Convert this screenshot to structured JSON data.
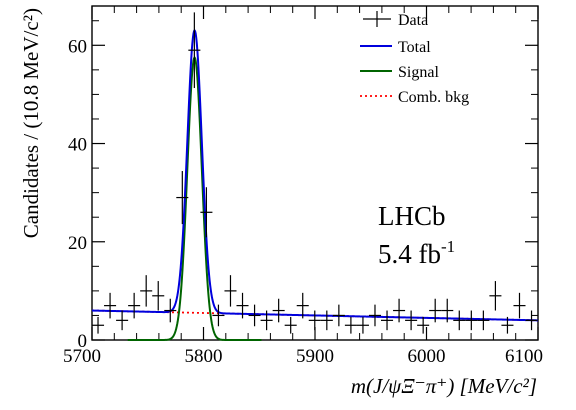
{
  "chart_data": {
    "type": "scatter",
    "xlabel": "m(J/ψΞ⁻π⁺) [MeV/c²]",
    "ylabel": "Candidates / (10.8 MeV/c²)",
    "xlim": [
      5700,
      6100
    ],
    "ylim": [
      0,
      68
    ],
    "x_ticks": [
      "5700",
      "5800",
      "5900",
      "6000",
      "6100"
    ],
    "y_ticks": [
      "0",
      "20",
      "40",
      "60"
    ],
    "bin_width": 10.8,
    "legend": {
      "placement": "top-right",
      "entries": [
        {
          "label": "Data",
          "style": "marker-errorbar",
          "color": "#000000"
        },
        {
          "label": "Total",
          "style": "solid-line",
          "color": "#0000dd"
        },
        {
          "label": "Signal",
          "style": "solid-line",
          "color": "#006400"
        },
        {
          "label": "Comb. bkg",
          "style": "dotted-line",
          "color": "#ff0000"
        }
      ]
    },
    "annotations": {
      "experiment": "LHCb",
      "luminosity_value": "5.4 fb",
      "luminosity_exponent": "-1"
    },
    "data_points": {
      "x": [
        5705.4,
        5716.2,
        5727.0,
        5737.8,
        5748.6,
        5759.4,
        5770.2,
        5781.0,
        5791.8,
        5802.6,
        5813.4,
        5824.2,
        5835.0,
        5845.8,
        5856.6,
        5867.4,
        5878.2,
        5889.0,
        5899.8,
        5910.6,
        5921.4,
        5932.2,
        5943.0,
        5953.8,
        5964.6,
        5975.4,
        5986.2,
        5997.0,
        6007.8,
        6018.6,
        6029.4,
        6040.2,
        6051.0,
        6061.8,
        6072.6,
        6083.4,
        6094.2
      ],
      "y": [
        3,
        7,
        4,
        7,
        10,
        9,
        6,
        29,
        59,
        26,
        5,
        10,
        7,
        5,
        4,
        6,
        3,
        7,
        4,
        4,
        5,
        3,
        3,
        5,
        4,
        6,
        4,
        3,
        6,
        6,
        4,
        4,
        4,
        9,
        3,
        7,
        4
      ],
      "y_err": [
        1.7,
        2.6,
        2.0,
        2.6,
        3.2,
        3.0,
        2.4,
        5.4,
        7.7,
        5.1,
        2.2,
        3.2,
        2.6,
        2.2,
        2.0,
        2.4,
        1.7,
        2.6,
        2.0,
        2.0,
        2.2,
        1.7,
        1.7,
        2.2,
        2.0,
        2.4,
        2.0,
        1.7,
        2.4,
        2.4,
        2.0,
        2.0,
        2.0,
        3.0,
        1.7,
        2.6,
        2.0
      ]
    },
    "model": {
      "signal_mean": 5792,
      "signal_width": 6.5,
      "signal_peak": 57.5,
      "background_at_5700": 6.0,
      "background_at_6100": 4.0
    }
  }
}
